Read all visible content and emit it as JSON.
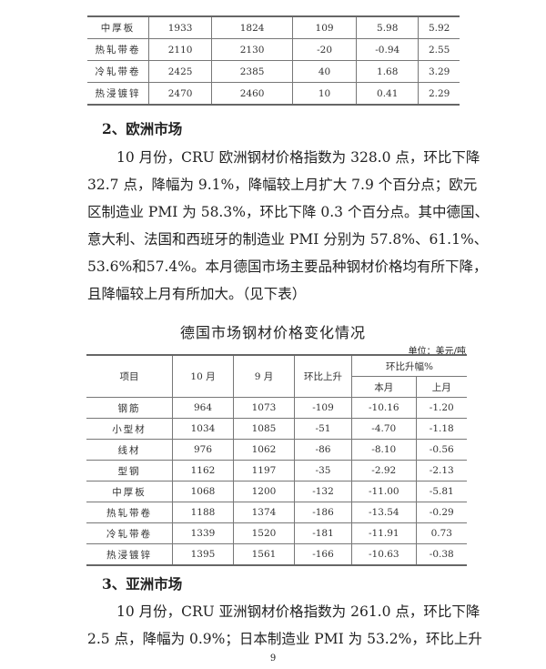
{
  "top_table": {
    "rows": [
      [
        "中厚板",
        "1933",
        "1824",
        "109",
        "5.98",
        "5.92"
      ],
      [
        "热轧带卷",
        "2110",
        "2130",
        "-20",
        "-0.94",
        "2.55"
      ],
      [
        "冷轧带卷",
        "2425",
        "2385",
        "40",
        "1.68",
        "3.29"
      ],
      [
        "热浸镀锌",
        "2470",
        "2460",
        "10",
        "0.41",
        "2.29"
      ]
    ]
  },
  "europe": {
    "heading": "2、欧洲市场",
    "lines": [
      "10 月份，CRU 欧洲钢材价格指数为 328.0 点，环比下降",
      "32.7 点，降幅为 9.1%，降幅较上月扩大 7.9 个百分点；欧元",
      "区制造业 PMI 为 58.3%，环比下降 0.3 个百分点。其中德国、",
      "意大利、法国和西班牙的制造业 PMI 分别为 57.8%、61.1%、",
      "53.6%和57.4%。本月德国市场主要品种钢材价格均有所下降，",
      "且降幅较上月有所加大。（见下表）"
    ]
  },
  "germany_table": {
    "title": "德国市场钢材价格变化情况",
    "unit": "单位：美元/吨",
    "headers": {
      "item": "项目",
      "oct": "10 月",
      "sep": "9 月",
      "change": "环比上升",
      "pct": "环比升幅%",
      "this_month": "本月",
      "last_month": "上月"
    },
    "rows": [
      [
        "钢筋",
        "964",
        "1073",
        "-109",
        "-10.16",
        "-1.20"
      ],
      [
        "小型材",
        "1034",
        "1085",
        "-51",
        "-4.70",
        "-1.18"
      ],
      [
        "线材",
        "976",
        "1062",
        "-86",
        "-8.10",
        "-0.56"
      ],
      [
        "型钢",
        "1162",
        "1197",
        "-35",
        "-2.92",
        "-2.13"
      ],
      [
        "中厚板",
        "1068",
        "1200",
        "-132",
        "-11.00",
        "-5.81"
      ],
      [
        "热轧带卷",
        "1188",
        "1374",
        "-186",
        "-13.54",
        "-0.29"
      ],
      [
        "冷轧带卷",
        "1339",
        "1520",
        "-181",
        "-11.91",
        "0.73"
      ],
      [
        "热浸镀锌",
        "1395",
        "1561",
        "-166",
        "-10.63",
        "-0.38"
      ]
    ]
  },
  "asia": {
    "heading": "3、亚洲市场",
    "lines": [
      "10 月份，CRU 亚洲钢材价格指数为 261.0 点，环比下降",
      "2.5 点，降幅为 0.9%；日本制造业 PMI 为 53.2%，环比上升"
    ]
  },
  "page_number": "9"
}
